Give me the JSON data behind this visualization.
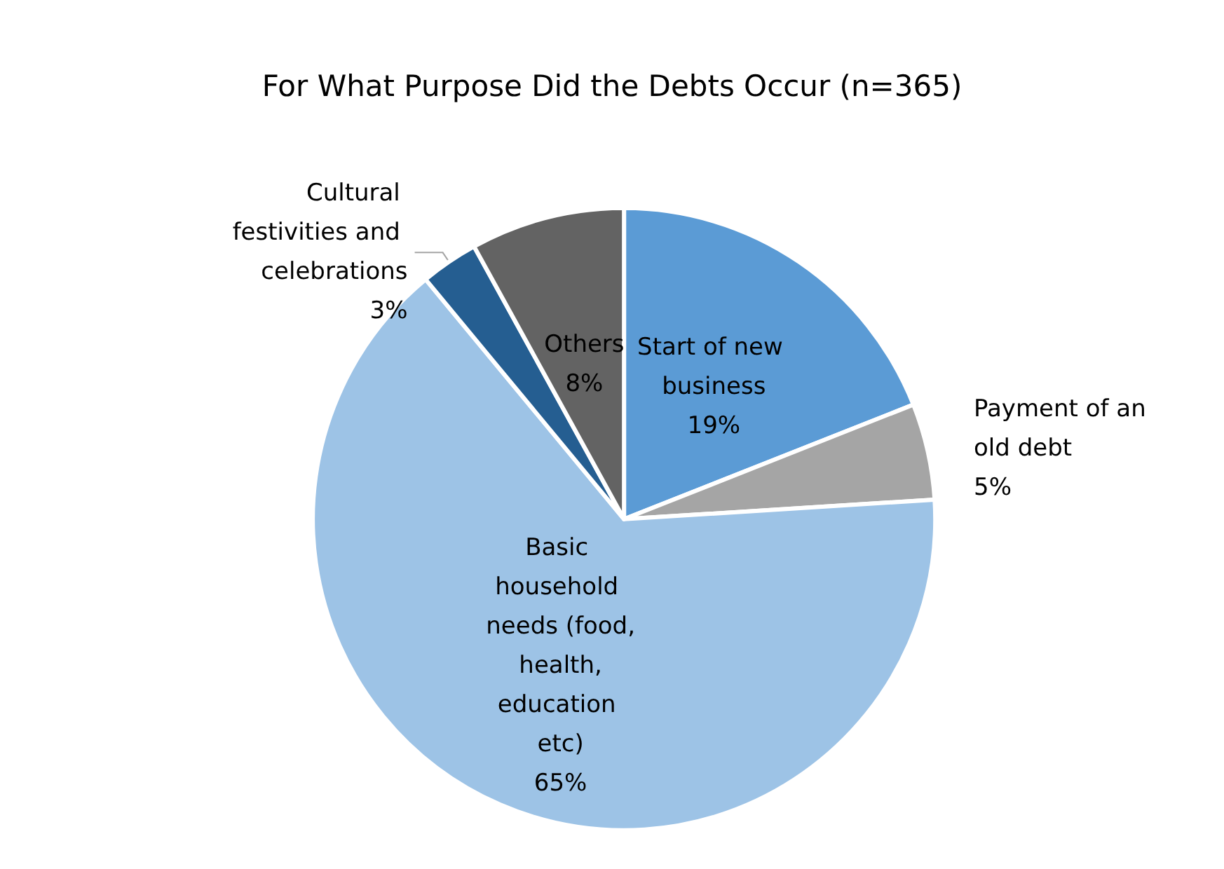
{
  "chart_data": {
    "type": "pie",
    "title": "For What Purpose Did the Debts Occur (n=365)",
    "categories": [
      "Start of new business",
      "Payment of an old debt",
      "Basic household needs (food, health, education etc)",
      "Cultural festivities and celebrations",
      "Others"
    ],
    "values": [
      19,
      5,
      65,
      3,
      8
    ],
    "value_labels": [
      "19%",
      "5%",
      "65%",
      "3%",
      "8%"
    ],
    "colors": [
      "#5b9bd5",
      "#a5a5a5",
      "#9dc3e6",
      "#255e91",
      "#636363"
    ],
    "legend": false
  }
}
